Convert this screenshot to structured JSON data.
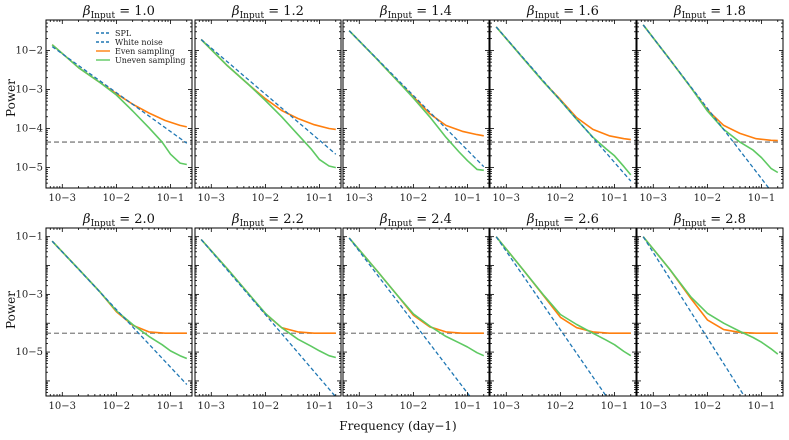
{
  "figure": {
    "xlabel": "Frequency (day−1)",
    "ylabel": "Power",
    "title_prefix": "β",
    "title_subscript": "Input"
  },
  "chart_data": {
    "type": "line",
    "xscale": "log",
    "yscale": "log",
    "xlim": [
      0.0005,
      0.25
    ],
    "rows": [
      {
        "ylim": [
          3e-06,
          0.06
        ],
        "yticks": [
          1e-05,
          0.0001,
          0.001,
          0.01
        ],
        "ytick_labels": [
          "10−5",
          "10−4",
          "10−3",
          "10−2"
        ]
      },
      {
        "ylim": [
          3e-07,
          0.2
        ],
        "yticks": [
          1e-05,
          0.001,
          0.1
        ],
        "ytick_labels": [
          "10−5",
          "10−3",
          "10−1"
        ]
      }
    ],
    "xticks": [
      0.001,
      0.01,
      0.1
    ],
    "xtick_labels": [
      "10−3",
      "10−2",
      "10−1"
    ],
    "legend": {
      "placement": "upper-right of first panel",
      "entries": [
        {
          "name": "SPL",
          "style": "dashed",
          "color": "#1f77b4"
        },
        {
          "name": "White noise",
          "style": "dashed",
          "color": "#1f77b4"
        },
        {
          "name": "Even sampling",
          "style": "solid",
          "color": "#ff7f0e"
        },
        {
          "name": "Uneven sampling",
          "style": "solid",
          "color": "#5ec962"
        }
      ]
    },
    "series_colors": {
      "spl": "#1f77b4",
      "white_noise": "#808080",
      "even": "#ff7f0e",
      "uneven": "#5ec962"
    },
    "white_noise_level": 4.5e-05,
    "panels": [
      {
        "beta": "1.0",
        "row": 0,
        "spl": {
          "x": [
            0.00065,
            0.2
          ],
          "y": [
            0.0125,
            4.2e-05
          ]
        },
        "even": {
          "x": [
            0.00065,
            0.002,
            0.005,
            0.01,
            0.02,
            0.04,
            0.08,
            0.15,
            0.2
          ],
          "y": [
            0.014,
            0.0036,
            0.0015,
            0.00078,
            0.00042,
            0.00025,
            0.00016,
            0.00012,
            0.00011
          ]
        },
        "uneven": {
          "x": [
            0.00065,
            0.002,
            0.005,
            0.01,
            0.02,
            0.04,
            0.07,
            0.1,
            0.15,
            0.2
          ],
          "y": [
            0.014,
            0.0036,
            0.0015,
            0.00072,
            0.00028,
            0.000105,
            4.5e-05,
            2.2e-05,
            1.3e-05,
            1.2e-05
          ]
        }
      },
      {
        "beta": "1.2",
        "row": 0,
        "spl": {
          "x": [
            0.00065,
            0.2
          ],
          "y": [
            0.019,
            2.2e-05
          ]
        },
        "even": {
          "x": [
            0.00065,
            0.002,
            0.005,
            0.01,
            0.02,
            0.04,
            0.08,
            0.15,
            0.2
          ],
          "y": [
            0.019,
            0.004,
            0.0013,
            0.00058,
            0.00029,
            0.00018,
            0.000125,
            0.0001,
            9.5e-05
          ]
        },
        "uneven": {
          "x": [
            0.00065,
            0.002,
            0.005,
            0.01,
            0.02,
            0.04,
            0.07,
            0.1,
            0.15,
            0.2
          ],
          "y": [
            0.019,
            0.004,
            0.0013,
            0.00052,
            0.0002,
            7e-05,
            3e-05,
            1.6e-05,
            1.1e-05,
            1e-05
          ]
        }
      },
      {
        "beta": "1.4",
        "row": 0,
        "spl": {
          "x": [
            0.00065,
            0.2
          ],
          "y": [
            0.032,
            1.05e-05
          ]
        },
        "even": {
          "x": [
            0.00065,
            0.002,
            0.005,
            0.01,
            0.02,
            0.04,
            0.08,
            0.15,
            0.2
          ],
          "y": [
            0.032,
            0.0065,
            0.0017,
            0.00065,
            0.00024,
            0.00012,
            8.5e-05,
            7e-05,
            6.5e-05
          ]
        },
        "uneven": {
          "x": [
            0.00065,
            0.002,
            0.005,
            0.01,
            0.02,
            0.04,
            0.07,
            0.1,
            0.15,
            0.2
          ],
          "y": [
            0.032,
            0.0065,
            0.0017,
            0.0006,
            0.0002,
            6e-05,
            2.5e-05,
            1.5e-05,
            9e-06,
            8.5e-06
          ]
        }
      },
      {
        "beta": "1.6",
        "row": 0,
        "spl": {
          "x": [
            0.00065,
            0.2
          ],
          "y": [
            0.04,
            4.5e-06
          ]
        },
        "even": {
          "x": [
            0.00065,
            0.002,
            0.005,
            0.01,
            0.02,
            0.04,
            0.08,
            0.15,
            0.2
          ],
          "y": [
            0.04,
            0.0065,
            0.0015,
            0.00055,
            0.00019,
            9.5e-05,
            6.5e-05,
            5.5e-05,
            5.2e-05
          ]
        },
        "uneven": {
          "x": [
            0.00065,
            0.002,
            0.005,
            0.01,
            0.02,
            0.04,
            0.07,
            0.1,
            0.15,
            0.2
          ],
          "y": [
            0.04,
            0.0065,
            0.0015,
            0.00052,
            0.00017,
            6e-05,
            3e-05,
            2e-05,
            1.05e-05,
            6.5e-06
          ]
        }
      },
      {
        "beta": "1.8",
        "row": 0,
        "spl": {
          "x": [
            0.00065,
            0.2
          ],
          "y": [
            0.045,
            1.5e-06
          ]
        },
        "even": {
          "x": [
            0.00065,
            0.002,
            0.005,
            0.01,
            0.02,
            0.04,
            0.08,
            0.15,
            0.2
          ],
          "y": [
            0.045,
            0.006,
            0.0011,
            0.0003,
            0.00012,
            7.5e-05,
            5.5e-05,
            5e-05,
            4.9e-05
          ]
        },
        "uneven": {
          "x": [
            0.00065,
            0.002,
            0.005,
            0.01,
            0.02,
            0.04,
            0.07,
            0.1,
            0.15,
            0.2
          ],
          "y": [
            0.045,
            0.006,
            0.0011,
            0.00028,
            9.5e-05,
            4.5e-05,
            2.8e-05,
            1.8e-05,
            9.5e-06,
            7.5e-06
          ]
        }
      },
      {
        "beta": "2.0",
        "row": 1,
        "spl": {
          "x": [
            0.00065,
            0.2
          ],
          "y": [
            0.07,
            7.5e-07
          ]
        },
        "even": {
          "x": [
            0.00065,
            0.002,
            0.005,
            0.01,
            0.02,
            0.04,
            0.08,
            0.15,
            0.2
          ],
          "y": [
            0.07,
            0.0075,
            0.0012,
            0.00025,
            8.5e-05,
            5e-05,
            4.5e-05,
            4.5e-05,
            4.5e-05
          ]
        },
        "uneven": {
          "x": [
            0.00065,
            0.002,
            0.005,
            0.01,
            0.02,
            0.04,
            0.07,
            0.1,
            0.15,
            0.2
          ],
          "y": [
            0.07,
            0.0075,
            0.0012,
            0.00027,
            9e-05,
            3.5e-05,
            1.8e-05,
            1.1e-05,
            7.5e-06,
            6e-06
          ]
        }
      },
      {
        "beta": "2.2",
        "row": 1,
        "spl": {
          "x": [
            0.00065,
            0.2
          ],
          "y": [
            0.08,
            2.8e-07
          ]
        },
        "even": {
          "x": [
            0.00065,
            0.002,
            0.005,
            0.01,
            0.02,
            0.04,
            0.08,
            0.15,
            0.2
          ],
          "y": [
            0.08,
            0.0075,
            0.001,
            0.00021,
            7e-05,
            5e-05,
            4.5e-05,
            4.5e-05,
            4.5e-05
          ]
        },
        "uneven": {
          "x": [
            0.00065,
            0.002,
            0.005,
            0.01,
            0.02,
            0.04,
            0.07,
            0.1,
            0.15,
            0.2
          ],
          "y": [
            0.08,
            0.0075,
            0.001,
            0.00022,
            7e-05,
            2.8e-05,
            1.6e-05,
            1.1e-05,
            7.5e-06,
            6.5e-06
          ]
        }
      },
      {
        "beta": "2.4",
        "row": 1,
        "spl": {
          "x": [
            0.00065,
            0.11
          ],
          "y": [
            0.09,
            3e-07
          ]
        },
        "even": {
          "x": [
            0.00065,
            0.002,
            0.005,
            0.01,
            0.02,
            0.04,
            0.08,
            0.15,
            0.2
          ],
          "y": [
            0.09,
            0.0075,
            0.00095,
            0.00019,
            7.5e-05,
            5e-05,
            4.5e-05,
            4.5e-05,
            4.5e-05
          ]
        },
        "uneven": {
          "x": [
            0.00065,
            0.002,
            0.005,
            0.01,
            0.02,
            0.04,
            0.07,
            0.1,
            0.15,
            0.2
          ],
          "y": [
            0.09,
            0.0075,
            0.00095,
            0.00021,
            8e-05,
            3.5e-05,
            2.1e-05,
            1.5e-05,
            9.5e-06,
            7.5e-06
          ]
        }
      },
      {
        "beta": "2.6",
        "row": 1,
        "spl": {
          "x": [
            0.00065,
            0.07
          ],
          "y": [
            0.1,
            3e-07
          ]
        },
        "even": {
          "x": [
            0.00065,
            0.002,
            0.005,
            0.01,
            0.02,
            0.04,
            0.08,
            0.15,
            0.2
          ],
          "y": [
            0.1,
            0.0075,
            0.00085,
            0.00016,
            7e-05,
            5e-05,
            4.5e-05,
            4.5e-05,
            4.5e-05
          ]
        },
        "uneven": {
          "x": [
            0.00065,
            0.002,
            0.005,
            0.01,
            0.02,
            0.04,
            0.07,
            0.1,
            0.15,
            0.2
          ],
          "y": [
            0.1,
            0.0075,
            0.0009,
            0.0002,
            9e-05,
            4.5e-05,
            2.6e-05,
            1.8e-05,
            1.05e-05,
            7.5e-06
          ]
        }
      },
      {
        "beta": "2.8",
        "row": 1,
        "spl": {
          "x": [
            0.00065,
            0.048
          ],
          "y": [
            0.1,
            3e-07
          ]
        },
        "even": {
          "x": [
            0.00065,
            0.002,
            0.005,
            0.01,
            0.02,
            0.04,
            0.08,
            0.15,
            0.2
          ],
          "y": [
            0.1,
            0.0075,
            0.0007,
            0.00013,
            6e-05,
            4.8e-05,
            4.5e-05,
            4.5e-05,
            4.5e-05
          ]
        },
        "uneven": {
          "x": [
            0.00065,
            0.002,
            0.005,
            0.01,
            0.02,
            0.04,
            0.07,
            0.1,
            0.15,
            0.2
          ],
          "y": [
            0.1,
            0.0075,
            0.0008,
            0.00022,
            0.0001,
            5.2e-05,
            3.2e-05,
            2.2e-05,
            1.3e-05,
            8.5e-06
          ]
        }
      }
    ]
  }
}
